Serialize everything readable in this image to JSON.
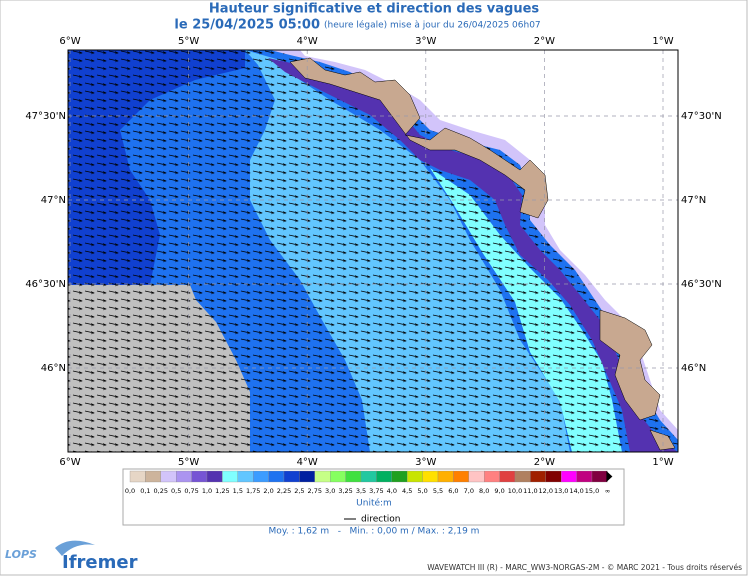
{
  "header": {
    "title": "Hauteur significative et direction des vagues",
    "date": "le 25/04/2025 05:00",
    "note": "(heure légale) mise à jour du 26/04/2025 06h07"
  },
  "map": {
    "lon_ticks": [
      "6°W",
      "5°W",
      "4°W",
      "3°W",
      "2°W",
      "1°W"
    ],
    "lat_ticks": [
      "47°30'N",
      "47°N",
      "46°30'N",
      "46°N"
    ]
  },
  "legend": {
    "unit": "Unité:m",
    "direction": "direction",
    "items": [
      {
        "label": "0,0",
        "color": "#e6d6c6"
      },
      {
        "label": "0,1",
        "color": "#cdb49c"
      },
      {
        "label": "0,25",
        "color": "#d2c4fa"
      },
      {
        "label": "0,5",
        "color": "#ab94f0"
      },
      {
        "label": "0,75",
        "color": "#7654d4"
      },
      {
        "label": "1,0",
        "color": "#5432b0"
      },
      {
        "label": "1,25",
        "color": "#80ffff"
      },
      {
        "label": "1,5",
        "color": "#62c6ff"
      },
      {
        "label": "1,75",
        "color": "#3c9cff"
      },
      {
        "label": "2,0",
        "color": "#1e72f0"
      },
      {
        "label": "2,25",
        "color": "#1040d0"
      },
      {
        "label": "2,5",
        "color": "#0020a0"
      },
      {
        "label": "2,75",
        "color": "#c6ff86"
      },
      {
        "label": "3,0",
        "color": "#86ff60"
      },
      {
        "label": "3,25",
        "color": "#40e040"
      },
      {
        "label": "3,5",
        "color": "#22c8a0"
      },
      {
        "label": "3,75",
        "color": "#00b060"
      },
      {
        "label": "4,0",
        "color": "#20a020"
      },
      {
        "label": "4,5",
        "color": "#c8e400"
      },
      {
        "label": "5,0",
        "color": "#ffe000"
      },
      {
        "label": "5,5",
        "color": "#ffb000"
      },
      {
        "label": "6,0",
        "color": "#ff8000"
      },
      {
        "label": "7,0",
        "color": "#ffc4c4"
      },
      {
        "label": "8,0",
        "color": "#ff8080"
      },
      {
        "label": "9,0",
        "color": "#e04040"
      },
      {
        "label": "10,0",
        "color": "#b08060"
      },
      {
        "label": "11,0",
        "color": "#a02000"
      },
      {
        "label": "12,0",
        "color": "#800000"
      },
      {
        "label": "13,0",
        "color": "#ff00ff"
      },
      {
        "label": "14,0",
        "color": "#c00080"
      },
      {
        "label": "15,0",
        "color": "#800040"
      },
      {
        "label": "∞",
        "color": "#000000"
      }
    ]
  },
  "stats": "Moy. : 1,62 m   -   Min. : 0,00 m / Max. : 2,19 m",
  "footer": {
    "logo_left": "LOPS",
    "logo_right": "Ifremer",
    "credits": "WAVEWATCH III (R) - MARC_WW3-NORGAS-2M - © MARC 2021 - Tous droits réservés"
  }
}
